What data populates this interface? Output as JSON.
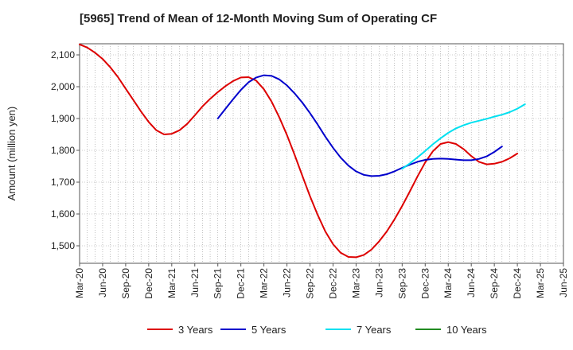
{
  "chart_data": {
    "type": "line",
    "title": "[5965]  Trend of Mean of 12-Month Moving Sum of Operating CF",
    "xlabel": "",
    "ylabel": "Amount (million yen)",
    "ylim": [
      1445,
      2135
    ],
    "yticks": [
      1500,
      1600,
      1700,
      1800,
      1900,
      2000,
      2100
    ],
    "ytick_labels": [
      "1,500",
      "1,600",
      "1,700",
      "1,800",
      "1,900",
      "2,000",
      "2,100"
    ],
    "x_start": "Mar-20",
    "x_end": "Jun-25",
    "xtick_labels": [
      "Mar-20",
      "Jun-20",
      "Sep-20",
      "Dec-20",
      "Mar-21",
      "Jun-21",
      "Sep-21",
      "Dec-21",
      "Mar-22",
      "Jun-22",
      "Sep-22",
      "Dec-22",
      "Mar-23",
      "Jun-23",
      "Sep-23",
      "Dec-23",
      "Mar-24",
      "Jun-24",
      "Sep-24",
      "Dec-24",
      "Mar-25",
      "Jun-25"
    ],
    "grid": true,
    "legend_position": "bottom",
    "series": [
      {
        "name": "3 Years",
        "color": "#dd0000",
        "start_month_index": 0,
        "values": [
          2133,
          2123,
          2107,
          2087,
          2061,
          2030,
          1994,
          1958,
          1922,
          1889,
          1863,
          1850,
          1852,
          1863,
          1883,
          1910,
          1938,
          1962,
          1983,
          2002,
          2018,
          2029,
          2030,
          2019,
          1992,
          1953,
          1904,
          1848,
          1786,
          1720,
          1656,
          1597,
          1545,
          1505,
          1478,
          1465,
          1464,
          1471,
          1488,
          1514,
          1545,
          1583,
          1625,
          1671,
          1718,
          1762,
          1797,
          1820,
          1826,
          1820,
          1804,
          1782,
          1764,
          1756,
          1758,
          1764,
          1775,
          1790
        ]
      },
      {
        "name": "5 Years",
        "color": "#0000cc",
        "start_month_index": 18,
        "values": [
          1900,
          1931,
          1961,
          1990,
          2014,
          2029,
          2036,
          2034,
          2023,
          2004,
          1979,
          1950,
          1917,
          1881,
          1843,
          1808,
          1777,
          1752,
          1734,
          1723,
          1719,
          1720,
          1725,
          1734,
          1745,
          1755,
          1764,
          1770,
          1773,
          1774,
          1773,
          1771,
          1769,
          1769,
          1773,
          1781,
          1795,
          1812
        ]
      },
      {
        "name": "7 Years",
        "color": "#00e0f0",
        "start_month_index": 42,
        "values": [
          1742,
          1759,
          1778,
          1798,
          1819,
          1838,
          1855,
          1869,
          1879,
          1887,
          1893,
          1899,
          1906,
          1912,
          1920,
          1931,
          1945
        ]
      },
      {
        "name": "10 Years",
        "color": "#228b22",
        "start_month_index": 0,
        "values": []
      }
    ]
  }
}
